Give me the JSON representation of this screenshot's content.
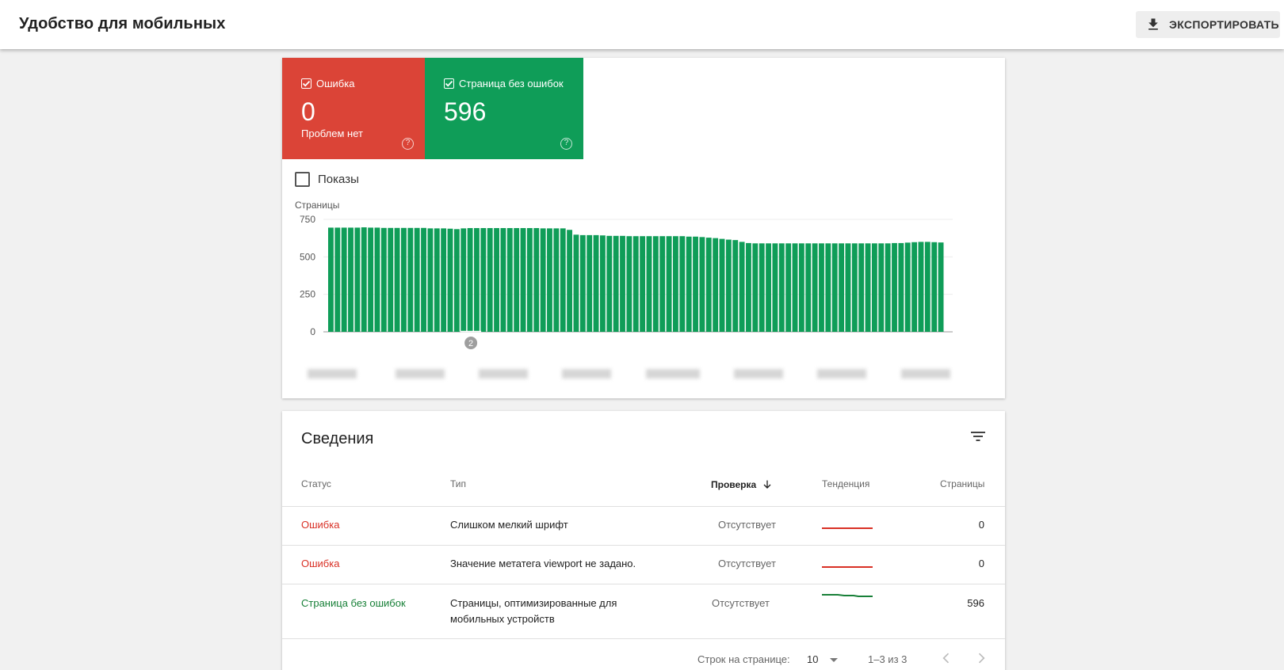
{
  "header": {
    "title": "Удобство для мобильных",
    "export_label": "ЭКСПОРТИРОВАТЬ"
  },
  "tiles": {
    "error": {
      "label": "Ошибка",
      "value": "0",
      "sub": "Проблем нет",
      "help": "?"
    },
    "ok": {
      "label": "Страница без ошибок",
      "value": "596",
      "help": "?"
    }
  },
  "impressions_label": "Показы",
  "chart_data": {
    "type": "bar",
    "ylabel": "Страницы",
    "ylim": [
      0,
      750
    ],
    "yticks": [
      "0",
      "250",
      "500",
      "750"
    ],
    "annotation": "2",
    "annotation_index": 21,
    "values": [
      695,
      695,
      695,
      695,
      695,
      697,
      695,
      695,
      693,
      693,
      693,
      693,
      693,
      693,
      693,
      690,
      690,
      690,
      688,
      685,
      690,
      692,
      692,
      692,
      692,
      692,
      692,
      692,
      692,
      692,
      692,
      692,
      690,
      690,
      690,
      690,
      680,
      648,
      645,
      645,
      645,
      643,
      640,
      640,
      640,
      638,
      638,
      638,
      638,
      638,
      638,
      638,
      638,
      638,
      635,
      635,
      632,
      628,
      625,
      620,
      615,
      612,
      600,
      592,
      590,
      590,
      590,
      590,
      590,
      590,
      590,
      590,
      590,
      590,
      590,
      590,
      590,
      590,
      590,
      590,
      590,
      590,
      590,
      590,
      590,
      592,
      592,
      595,
      598,
      600,
      600,
      598,
      596
    ],
    "color": "#0f9d58"
  },
  "details": {
    "title": "Сведения",
    "columns": {
      "status": "Статус",
      "type": "Тип",
      "check": "Проверка",
      "trend": "Тенденция",
      "pages": "Страницы"
    },
    "rows": [
      {
        "status": "Ошибка",
        "type": "Слишком мелкий шрифт",
        "check": "Отсутствует",
        "pages": "0"
      },
      {
        "status": "Ошибка",
        "type": "Значение метатега viewport не задано.",
        "check": "Отсутствует",
        "pages": "0"
      },
      {
        "status": "Страница без ошибок",
        "type_line1": "Страницы, оптимизированные для",
        "type_line2": "мобильных устройств",
        "check": "Отсутствует",
        "pages": "596"
      }
    ],
    "pager": {
      "rows_label": "Строк на странице:",
      "rows_value": "10",
      "range": "1–3 из 3"
    }
  },
  "colors": {
    "error": "#db4437",
    "ok": "#0f9d58"
  }
}
